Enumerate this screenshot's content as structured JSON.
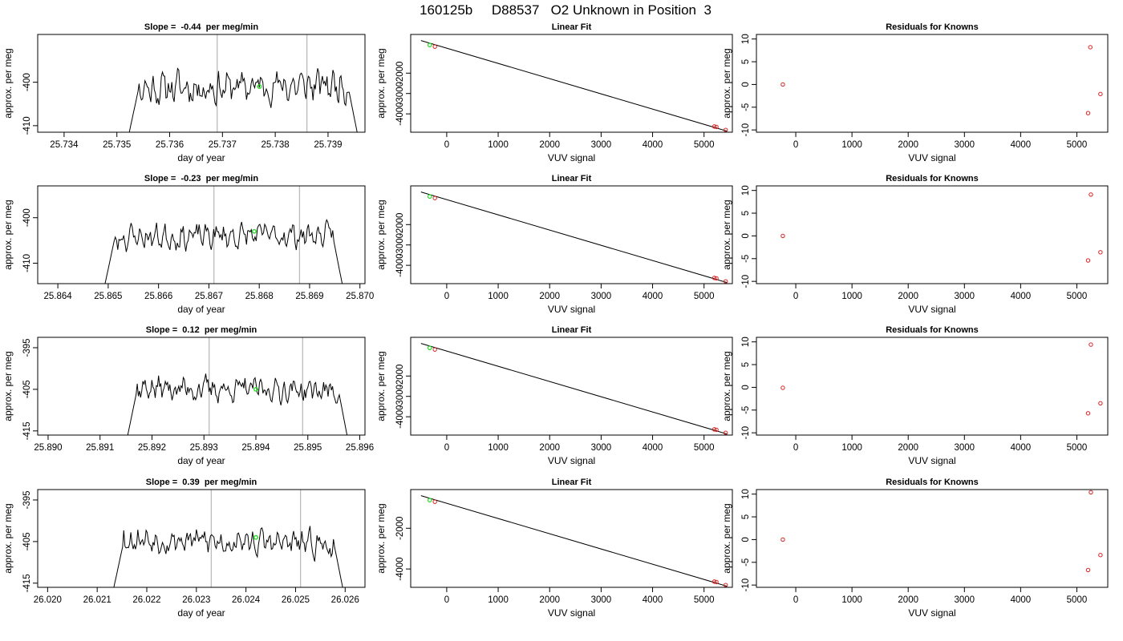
{
  "figure": {
    "title": "160125b     D88537   O2 Unknown in Position  3"
  },
  "colors": {
    "trace": "#000000",
    "marker_green": "#22dd22",
    "known_points": "#dd2222",
    "vertical_lines": "#bbbbbb",
    "fit_line": "#000000"
  },
  "chart_data": [
    {
      "type": "line",
      "panel": "timeseries-1",
      "title": "Slope =  -0.44  per meg/min",
      "xlabel": "day of year",
      "ylabel": "approx. per meg",
      "xlim": [
        25.7335,
        25.7397
      ],
      "ylim": [
        -411.5,
        -389
      ],
      "xticks": [
        "25.734",
        "25.735",
        "25.736",
        "25.737",
        "25.738",
        "25.739"
      ],
      "yticks": [
        "-400",
        "-410"
      ],
      "segment": [
        25.7352,
        25.7396
      ],
      "base": -401,
      "amp": 3.0,
      "trend": 0.9,
      "seed": 11,
      "vlines": [
        25.7369,
        25.7386
      ],
      "green_point": [
        25.7377,
        -401
      ]
    },
    {
      "type": "scatter",
      "panel": "fit-1",
      "title": "Linear Fit",
      "xlabel": "VUV signal",
      "ylabel": "approx. per meg",
      "xlim": [
        -700,
        5550
      ],
      "ylim": [
        -4900,
        -100
      ],
      "xticks": [
        "0",
        "1000",
        "2000",
        "3000",
        "4000",
        "5000"
      ],
      "yticks": [
        "-2000",
        "-3000",
        "-4000"
      ],
      "fit_line": [
        [
          -500,
          -400
        ],
        [
          5450,
          -4850
        ]
      ],
      "points": [
        [
          -230,
          -700
        ],
        [
          5200,
          -4620
        ],
        [
          5240,
          -4640
        ],
        [
          5420,
          -4790
        ]
      ],
      "green_points": [
        [
          -330,
          -620
        ]
      ]
    },
    {
      "type": "scatter",
      "panel": "residual-1",
      "title": "Residuals for Knowns",
      "xlabel": "VUV signal",
      "ylabel": "approx. per meg",
      "xlim": [
        -700,
        5550
      ],
      "ylim": [
        -10.5,
        11
      ],
      "xticks": [
        "0",
        "1000",
        "2000",
        "3000",
        "4000",
        "5000"
      ],
      "yticks": [
        "10",
        "5",
        "0",
        "-5",
        "-10"
      ],
      "points": [
        [
          -230,
          0
        ],
        [
          5240,
          8.2
        ],
        [
          5420,
          -2.1
        ],
        [
          5200,
          -6.3
        ]
      ]
    },
    {
      "type": "line",
      "panel": "timeseries-2",
      "title": "Slope =  -0.23  per meg/min",
      "xlabel": "day of year",
      "ylabel": "approx. per meg",
      "xlim": [
        25.8636,
        25.8701
      ],
      "ylim": [
        -414.5,
        -393
      ],
      "xticks": [
        "25.864",
        "25.865",
        "25.866",
        "25.867",
        "25.868",
        "25.869",
        "25.870"
      ],
      "yticks": [
        "-400",
        "-410"
      ],
      "segment": [
        25.8649,
        25.8697
      ],
      "base": -404,
      "amp": 2.2,
      "trend": 0.5,
      "seed": 23,
      "vlines": [
        25.8671,
        25.8688
      ],
      "green_point": [
        25.8679,
        -403
      ]
    },
    {
      "type": "scatter",
      "panel": "fit-2",
      "title": "Linear Fit",
      "xlabel": "VUV signal",
      "ylabel": "approx. per meg",
      "xlim": [
        -700,
        5550
      ],
      "ylim": [
        -4900,
        -100
      ],
      "xticks": [
        "0",
        "1000",
        "2000",
        "3000",
        "4000",
        "5000"
      ],
      "yticks": [
        "-2000",
        "-3000",
        "-4000"
      ],
      "fit_line": [
        [
          -500,
          -400
        ],
        [
          5450,
          -4850
        ]
      ],
      "points": [
        [
          -230,
          -700
        ],
        [
          5200,
          -4620
        ],
        [
          5240,
          -4640
        ],
        [
          5420,
          -4790
        ]
      ],
      "green_points": [
        [
          -330,
          -620
        ]
      ]
    },
    {
      "type": "scatter",
      "panel": "residual-2",
      "title": "Residuals for Knowns",
      "xlabel": "VUV signal",
      "ylabel": "approx. per meg",
      "xlim": [
        -700,
        5550
      ],
      "ylim": [
        -10.5,
        11
      ],
      "xticks": [
        "0",
        "1000",
        "2000",
        "3000",
        "4000",
        "5000"
      ],
      "yticks": [
        "10",
        "5",
        "0",
        "-5",
        "-10"
      ],
      "points": [
        [
          -230,
          0
        ],
        [
          5250,
          9.1
        ],
        [
          5420,
          -3.6
        ],
        [
          5200,
          -5.4
        ]
      ]
    },
    {
      "type": "line",
      "panel": "timeseries-3",
      "title": "Slope =  0.12  per meg/min",
      "xlabel": "day of year",
      "ylabel": "approx. per meg",
      "xlim": [
        25.8898,
        25.8961
      ],
      "ylim": [
        -416,
        -392.5
      ],
      "xticks": [
        "25.890",
        "25.891",
        "25.892",
        "25.893",
        "25.894",
        "25.895",
        "25.896"
      ],
      "yticks": [
        "-395",
        "-405",
        "-415"
      ],
      "segment": [
        25.8915,
        25.8958
      ],
      "base": -405,
      "amp": 2.3,
      "trend": -0.8,
      "seed": 37,
      "vlines": [
        25.8931,
        25.8949
      ],
      "green_point": [
        25.894,
        -405
      ]
    },
    {
      "type": "scatter",
      "panel": "fit-3",
      "title": "Linear Fit",
      "xlabel": "VUV signal",
      "ylabel": "approx. per meg",
      "xlim": [
        -700,
        5550
      ],
      "ylim": [
        -4900,
        -100
      ],
      "xticks": [
        "0",
        "1000",
        "2000",
        "3000",
        "4000",
        "5000"
      ],
      "yticks": [
        "-2000",
        "-3000",
        "-4000"
      ],
      "fit_line": [
        [
          -500,
          -400
        ],
        [
          5450,
          -4850
        ]
      ],
      "points": [
        [
          -230,
          -700
        ],
        [
          5200,
          -4620
        ],
        [
          5240,
          -4640
        ],
        [
          5420,
          -4790
        ]
      ],
      "green_points": [
        [
          -330,
          -620
        ]
      ]
    },
    {
      "type": "scatter",
      "panel": "residual-3",
      "title": "Residuals for Knowns",
      "xlabel": "VUV signal",
      "ylabel": "approx. per meg",
      "xlim": [
        -700,
        5550
      ],
      "ylim": [
        -10.5,
        11
      ],
      "xticks": [
        "0",
        "1000",
        "2000",
        "3000",
        "4000",
        "5000"
      ],
      "yticks": [
        "10",
        "5",
        "0",
        "-5",
        "-10"
      ],
      "points": [
        [
          -230,
          -0.1
        ],
        [
          5250,
          9.4
        ],
        [
          5420,
          -3.5
        ],
        [
          5200,
          -5.7
        ]
      ]
    },
    {
      "type": "line",
      "panel": "timeseries-4",
      "title": "Slope =  0.39  per meg/min",
      "xlabel": "day of year",
      "ylabel": "approx. per meg",
      "xlim": [
        26.0198,
        26.0264
      ],
      "ylim": [
        -416,
        -392.5
      ],
      "xticks": [
        "26.020",
        "26.021",
        "26.022",
        "26.023",
        "26.024",
        "26.025",
        "26.026"
      ],
      "yticks": [
        "-395",
        "-405",
        "-415"
      ],
      "segment": [
        26.0213,
        26.026
      ],
      "base": -405,
      "amp": 2.4,
      "trend": -1.6,
      "seed": 53,
      "vlines": [
        26.0233,
        26.0251
      ],
      "green_point": [
        26.0242,
        -404
      ]
    },
    {
      "type": "scatter",
      "panel": "fit-4",
      "title": "Linear Fit",
      "xlabel": "VUV signal",
      "ylabel": "approx. per meg",
      "xlim": [
        -700,
        5550
      ],
      "ylim": [
        -4900,
        -100
      ],
      "xticks": [
        "0",
        "1000",
        "2000",
        "3000",
        "4000",
        "5000"
      ],
      "yticks": [
        "-2000",
        "-4000"
      ],
      "fit_line": [
        [
          -500,
          -400
        ],
        [
          5450,
          -4850
        ]
      ],
      "points": [
        [
          -230,
          -700
        ],
        [
          5200,
          -4620
        ],
        [
          5240,
          -4640
        ],
        [
          5420,
          -4790
        ]
      ],
      "green_points": [
        [
          -330,
          -620
        ]
      ]
    },
    {
      "type": "scatter",
      "panel": "residual-4",
      "title": "Residuals for Knowns",
      "xlabel": "VUV signal",
      "ylabel": "approx. per meg",
      "xlim": [
        -700,
        5550
      ],
      "ylim": [
        -10.5,
        11
      ],
      "xticks": [
        "0",
        "1000",
        "2000",
        "3000",
        "4000",
        "5000"
      ],
      "yticks": [
        "10",
        "5",
        "0",
        "-5",
        "-10"
      ],
      "points": [
        [
          -230,
          0
        ],
        [
          5250,
          10.4
        ],
        [
          5420,
          -3.4
        ],
        [
          5200,
          -6.7
        ]
      ]
    }
  ]
}
